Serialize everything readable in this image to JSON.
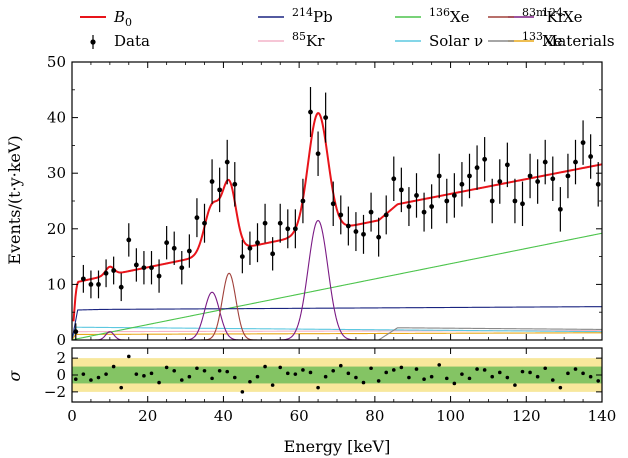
{
  "chart_data": {
    "type": "line",
    "xlabel": "Energy [keV]",
    "ylabel": "Events/(t·y·keV)",
    "resid_ylabel": "σ",
    "xlim": [
      0,
      140
    ],
    "ylim": [
      0,
      50
    ],
    "resid_ylim": [
      -3.2,
      3.2
    ],
    "x_ticks": [
      0,
      20,
      40,
      60,
      80,
      100,
      120,
      140
    ],
    "y_ticks": [
      0,
      10,
      20,
      30,
      40,
      50
    ],
    "resid_ticks": [
      2,
      0,
      -2
    ],
    "legend_placement": "top",
    "legend": [
      {
        "key": "B0",
        "label": "B",
        "sub": "0",
        "color": "#e8141a",
        "kind": "line"
      },
      {
        "key": "Pb214",
        "label": "Pb",
        "sup": "214",
        "color": "#1a2480",
        "kind": "line"
      },
      {
        "key": "Xe136",
        "label": "Xe",
        "sup": "136",
        "color": "#4cc44c",
        "kind": "line"
      },
      {
        "key": "Xe124",
        "label": "Xe",
        "sup": "124",
        "color": "#7a1a84",
        "kind": "line"
      },
      {
        "key": "Kr83m",
        "label": "Kr",
        "sup": "83m",
        "color": "#a0403a",
        "kind": "line"
      },
      {
        "key": "data",
        "label": "Data",
        "color": "#000000",
        "kind": "errorbar"
      },
      {
        "key": "Kr85",
        "label": "Kr",
        "sup": "85",
        "color": "#f4b4c8",
        "kind": "line"
      },
      {
        "key": "solar",
        "label": "Solar ν",
        "color": "#5cc8e0",
        "kind": "line"
      },
      {
        "key": "materials",
        "label": "Materials",
        "color": "#e8a818",
        "kind": "line"
      },
      {
        "key": "Xe133",
        "label": "Xe",
        "sup": "133",
        "color": "#888888",
        "kind": "line"
      }
    ],
    "bands": {
      "two_sigma_color": "#f8e89c",
      "one_sigma_color": "#84c464"
    },
    "data": {
      "x": [
        1,
        3,
        5,
        7,
        9,
        11,
        13,
        15,
        17,
        19,
        21,
        23,
        25,
        27,
        29,
        31,
        33,
        35,
        37,
        39,
        41,
        43,
        45,
        47,
        49,
        51,
        53,
        55,
        57,
        59,
        61,
        63,
        65,
        67,
        69,
        71,
        73,
        75,
        77,
        79,
        81,
        83,
        85,
        87,
        89,
        91,
        93,
        95,
        97,
        99,
        101,
        103,
        105,
        107,
        109,
        111,
        113,
        115,
        117,
        119,
        121,
        123,
        125,
        127,
        129,
        131,
        133,
        135,
        137,
        139
      ],
      "y": [
        1.5,
        11,
        10,
        10,
        12,
        12.5,
        9.5,
        18,
        13.5,
        13,
        13,
        11.5,
        17.5,
        16.5,
        13,
        16,
        22,
        21,
        28.5,
        27,
        32,
        28,
        15,
        16.5,
        17.5,
        21,
        15.5,
        21,
        20,
        20,
        25,
        41,
        33.5,
        40,
        24.5,
        22.5,
        20.5,
        19.5,
        19,
        23,
        18.5,
        22.5,
        29,
        27,
        24,
        26,
        23,
        24,
        29.5,
        25,
        26,
        28,
        29.5,
        31,
        32.5,
        25,
        28.5,
        31.5,
        25,
        24.5,
        29.5,
        28.5,
        32,
        29,
        23.5,
        29.5,
        32,
        35.5,
        33,
        28
      ],
      "err": [
        1.5,
        2.5,
        2.5,
        2.5,
        2.5,
        2.5,
        2.5,
        3,
        3,
        3,
        3,
        3,
        3,
        3,
        3,
        3,
        3.5,
        3.5,
        4,
        4,
        4,
        4,
        3,
        3,
        3.5,
        3.5,
        3,
        3.5,
        3.5,
        3.5,
        4,
        4.5,
        4,
        4.5,
        4,
        3.5,
        3.5,
        3.5,
        3.5,
        3.5,
        3.5,
        3.5,
        4,
        4,
        3.5,
        4,
        3.5,
        4,
        4,
        4,
        4,
        4,
        4,
        4,
        4,
        4,
        4,
        4,
        4,
        4,
        4,
        4,
        4,
        4,
        4,
        4,
        4,
        4,
        4,
        4
      ]
    },
    "residuals": {
      "x": [
        1,
        3,
        5,
        7,
        9,
        11,
        13,
        15,
        17,
        19,
        21,
        23,
        25,
        27,
        29,
        31,
        33,
        35,
        37,
        39,
        41,
        43,
        45,
        47,
        49,
        51,
        53,
        55,
        57,
        59,
        61,
        63,
        65,
        67,
        69,
        71,
        73,
        75,
        77,
        79,
        81,
        83,
        85,
        87,
        89,
        91,
        93,
        95,
        97,
        99,
        101,
        103,
        105,
        107,
        109,
        111,
        113,
        115,
        117,
        119,
        121,
        123,
        125,
        127,
        129,
        131,
        133,
        135,
        137,
        139
      ],
      "y": [
        -0.5,
        0.1,
        -0.6,
        -0.3,
        0.1,
        1.0,
        -1.5,
        2.2,
        0.1,
        -0.1,
        0.2,
        -0.9,
        0.9,
        0.5,
        -0.6,
        -0.2,
        0.8,
        0.5,
        -0.4,
        0.5,
        0.4,
        -0.3,
        -2.0,
        -0.8,
        -0.2,
        1.0,
        -1.2,
        0.9,
        0.2,
        0.1,
        0.6,
        0.3,
        -1.5,
        -0.2,
        0.5,
        1.1,
        0.2,
        -0.3,
        -0.9,
        0.8,
        -0.7,
        0.3,
        0.6,
        0.9,
        -0.3,
        0.7,
        -0.5,
        -0.2,
        1.2,
        -0.4,
        -1.0,
        0.1,
        -0.4,
        0.7,
        0.6,
        -0.2,
        0.3,
        -0.3,
        -1.2,
        0.4,
        0.3,
        -0.2,
        0.8,
        -0.6,
        -1.5,
        0.2,
        0.7,
        0.2,
        -0.2,
        -0.7
      ]
    }
  }
}
